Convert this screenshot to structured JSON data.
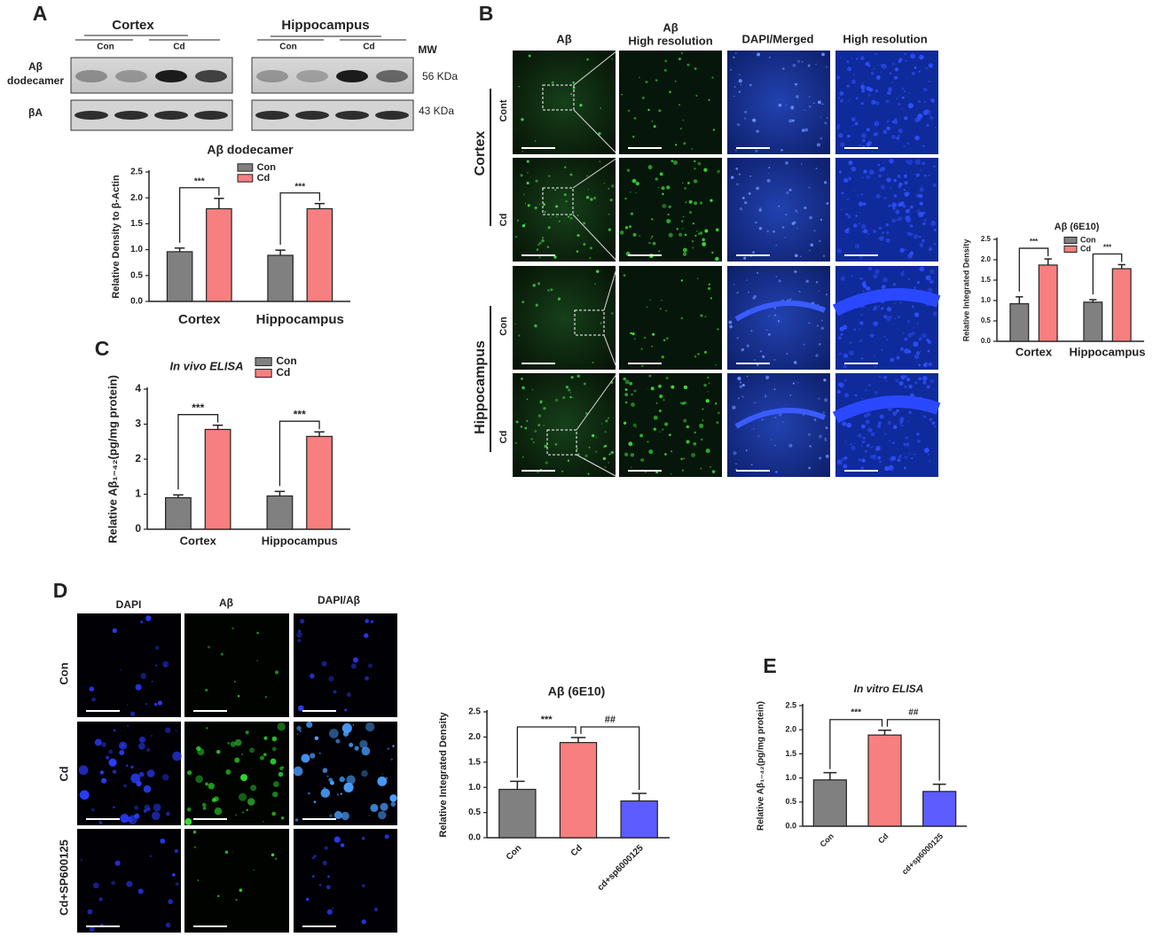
{
  "panel_labels": [
    "A",
    "B",
    "C",
    "D",
    "E"
  ],
  "blot": {
    "regions": [
      "Cortex",
      "Hippocampus"
    ],
    "lanes": [
      "Con",
      "Cd",
      "Con",
      "Cd"
    ],
    "mw_header": "MW",
    "rows": [
      {
        "label": [
          "Aβ",
          "dodecamer"
        ],
        "mw": "56 KDa"
      },
      {
        "label": [
          "βA"
        ],
        "mw": "43 KDa"
      }
    ]
  },
  "imaging_b": {
    "columns": [
      [
        "Aβ"
      ],
      [
        "Aβ",
        "High resolution"
      ],
      [
        "DAPI/Merged"
      ],
      [
        "High resolution"
      ]
    ],
    "regions": [
      "Cortex",
      "Hippocampus"
    ],
    "rows": [
      "Cont",
      "Cd",
      "Con",
      "Cd"
    ]
  },
  "imaging_d": {
    "columns": [
      "DAPI",
      "Aβ",
      "DAPI/Aβ"
    ],
    "rows": [
      "Con",
      "Cd",
      "Cd+SP600125"
    ]
  },
  "chart_data": [
    {
      "type": "bar",
      "title": "Aβ dodecamer",
      "y_label": "Relative Density to β-Actin",
      "categories": [
        "Cortex",
        "Hippocampus"
      ],
      "series": [
        {
          "name": "Con",
          "color": "#808080",
          "values": [
            0.96,
            0.89
          ],
          "errors": [
            0.07,
            0.1
          ]
        },
        {
          "name": "Cd",
          "color": "#f77f7f",
          "values": [
            1.79,
            1.79
          ],
          "errors": [
            0.2,
            0.1
          ]
        }
      ],
      "ylim": [
        0,
        2.5
      ],
      "yticks": [
        {
          "value": 0,
          "label": "0.0"
        },
        0.5,
        {
          "value": 1,
          "label": "1.0"
        },
        1.5,
        {
          "value": 2,
          "label": "2.0"
        },
        2.5
      ],
      "annotations": [
        "***",
        "***"
      ]
    },
    {
      "type": "bar",
      "title": "Aβ (6E10)",
      "y_label": "Relative Integrated Density",
      "categories": [
        "Cortex",
        "Hippocampus"
      ],
      "series": [
        {
          "name": "Con",
          "color": "#808080",
          "values": [
            0.92,
            0.96
          ],
          "errors": [
            0.17,
            0.06
          ]
        },
        {
          "name": "Cd",
          "color": "#f77f7f",
          "values": [
            1.87,
            1.78
          ],
          "errors": [
            0.15,
            0.1
          ]
        }
      ],
      "ylim": [
        0,
        2.5
      ],
      "yticks": [
        {
          "value": 0,
          "label": "0.0"
        },
        0.5,
        {
          "value": 1,
          "label": "1.0"
        },
        1.5,
        {
          "value": 2,
          "label": "2.0"
        },
        2.5
      ],
      "annotations": [
        "***",
        "***"
      ]
    },
    {
      "type": "bar",
      "title": "In vivo ELISA",
      "y_label": "Relative Aβ₁₋₄₂(pg/mg protein)",
      "categories": [
        "Cortex",
        "Hippocampus"
      ],
      "series": [
        {
          "name": "Con",
          "color": "#808080",
          "values": [
            0.9,
            0.95
          ],
          "errors": [
            0.08,
            0.13
          ]
        },
        {
          "name": "Cd",
          "color": "#f77f7f",
          "values": [
            2.85,
            2.65
          ],
          "errors": [
            0.12,
            0.13
          ]
        }
      ],
      "ylim": [
        0,
        4
      ],
      "yticks": [
        0,
        1,
        2,
        3,
        4
      ],
      "annotations": [
        "***",
        "***"
      ]
    },
    {
      "type": "bar",
      "title": "Aβ (6E10)",
      "y_label": "Relative Integrated Density",
      "categories": [
        "Con",
        "Cd",
        "cd+sp6000125"
      ],
      "values": [
        0.96,
        1.89,
        0.73
      ],
      "errors": [
        0.16,
        0.1,
        0.15
      ],
      "colors": [
        "#808080",
        "#f77f7f",
        "#5c5cff"
      ],
      "ylim": [
        0,
        2.5
      ],
      "yticks": [
        {
          "value": 0,
          "label": "0.0"
        },
        0.5,
        {
          "value": 1,
          "label": "1.0"
        },
        1.5,
        {
          "value": 2,
          "label": "2.0"
        },
        2.5
      ],
      "annotations": [
        "***",
        "##"
      ]
    },
    {
      "type": "bar",
      "title": "In vitro ELISA",
      "y_label": "Relative Aβ₁₋₄₂(pg/mg protein)",
      "categories": [
        "Con",
        "Cd",
        "cd+sp6000125"
      ],
      "values": [
        0.96,
        1.89,
        0.72
      ],
      "errors": [
        0.15,
        0.1,
        0.15
      ],
      "colors": [
        "#808080",
        "#f77f7f",
        "#5c5cff"
      ],
      "ylim": [
        0,
        2.5
      ],
      "yticks": [
        {
          "value": 0,
          "label": "0.0"
        },
        0.5,
        {
          "value": 1,
          "label": "1.0"
        },
        1.5,
        {
          "value": 2,
          "label": "2.0"
        },
        2.5
      ],
      "annotations": [
        "***",
        "##"
      ]
    }
  ]
}
